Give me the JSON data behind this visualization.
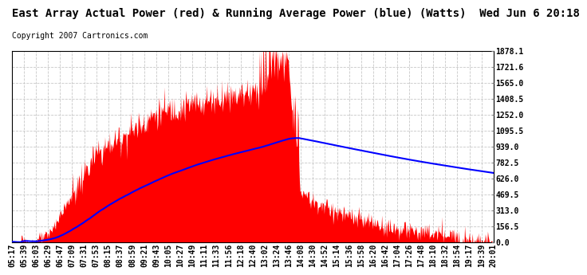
{
  "title": "East Array Actual Power (red) & Running Average Power (blue) (Watts)  Wed Jun 6 20:18",
  "copyright": "Copyright 2007 Cartronics.com",
  "background_color": "#ffffff",
  "plot_bg_color": "#ffffff",
  "grid_color": "#c8c8c8",
  "y_ticks": [
    0.0,
    156.5,
    313.0,
    469.5,
    626.0,
    782.5,
    939.0,
    1095.5,
    1252.0,
    1408.5,
    1565.0,
    1721.6,
    1878.1
  ],
  "x_labels": [
    "05:17",
    "05:39",
    "06:03",
    "06:29",
    "06:47",
    "07:09",
    "07:31",
    "07:53",
    "08:15",
    "08:37",
    "08:59",
    "09:21",
    "09:43",
    "10:05",
    "10:27",
    "10:49",
    "11:11",
    "11:33",
    "11:56",
    "12:18",
    "12:40",
    "13:02",
    "13:24",
    "13:46",
    "14:08",
    "14:30",
    "14:52",
    "15:14",
    "15:36",
    "15:58",
    "16:20",
    "16:42",
    "17:04",
    "17:26",
    "17:48",
    "18:10",
    "18:32",
    "18:54",
    "19:17",
    "19:39",
    "20:01"
  ],
  "actual_color": "#ff0000",
  "avg_color": "#0000ff",
  "title_fontsize": 10,
  "tick_fontsize": 7,
  "copyright_fontsize": 7,
  "ymax": 1878.1
}
